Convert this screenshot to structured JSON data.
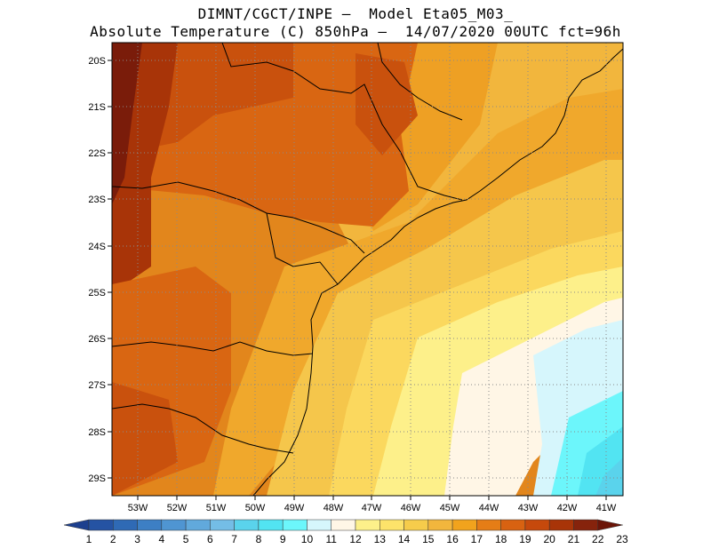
{
  "header": {
    "line1": "DIMNT/CGCT/INPE –  Model Eta05_M03_",
    "line2": "Absolute Temperature (C) 850hPa –  14/07/2020 00UTC fct=96h"
  },
  "map": {
    "lat_labels": [
      "20S",
      "21S",
      "22S",
      "23S",
      "24S",
      "25S",
      "26S",
      "27S",
      "28S",
      "29S"
    ],
    "lon_labels": [
      "53W",
      "52W",
      "51W",
      "50W",
      "49W",
      "48W",
      "47W",
      "46W",
      "45W",
      "44W",
      "43W",
      "42W",
      "41W"
    ],
    "extent": {
      "west": -54.0,
      "east": -40.4,
      "north": -19.8,
      "south": -29.6
    },
    "gridlines": "dotted"
  },
  "colorbar": {
    "labels": [
      "1",
      "2",
      "3",
      "4",
      "5",
      "6",
      "7",
      "8",
      "9",
      "10",
      "11",
      "12",
      "13",
      "14",
      "15",
      "16",
      "17",
      "18",
      "19",
      "20",
      "21",
      "22",
      "23"
    ],
    "colors": [
      "#1c3f8e",
      "#2553a3",
      "#2f6ab5",
      "#3d7fc4",
      "#4f95d2",
      "#61a9dc",
      "#74bde6",
      "#5ad3ec",
      "#52e4f2",
      "#6cf6fb",
      "#d6f6fc",
      "#fff6e6",
      "#fdf08a",
      "#fde36a",
      "#f6cc4b",
      "#f2b63d",
      "#f1a31d",
      "#e57d16",
      "#d86211",
      "#c6490c",
      "#a83408",
      "#86230c",
      "#6b1508"
    ]
  }
}
